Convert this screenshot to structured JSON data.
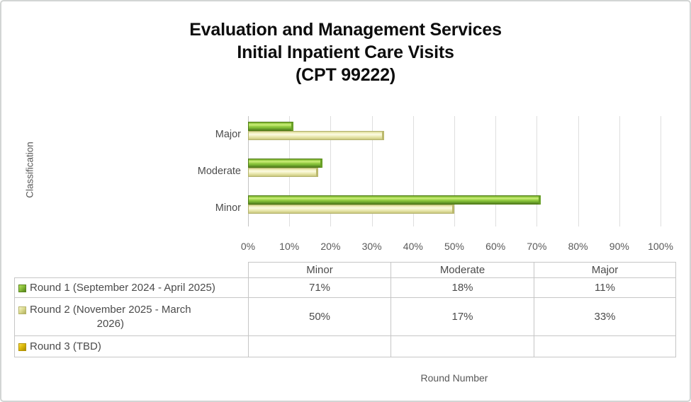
{
  "window": {
    "background": "#ffffff",
    "border_color": "#d2d5d4"
  },
  "title": {
    "lines": [
      "Evaluation and Management Services",
      "Initial Inpatient Care Visits",
      "(CPT 99222)"
    ]
  },
  "chart_data": {
    "type": "bar",
    "orientation": "horizontal",
    "title": "Evaluation and Management Services Initial Inpatient Care Visits (CPT 99222)",
    "y_axis_label": "Classification",
    "x_axis_label": "Round Number",
    "categories": [
      "Major",
      "Moderate",
      "Minor"
    ],
    "x_ticks": [
      "0%",
      "10%",
      "20%",
      "30%",
      "40%",
      "50%",
      "60%",
      "70%",
      "80%",
      "90%",
      "100%"
    ],
    "xlim": [
      0,
      100
    ],
    "gridlines": true,
    "legend_position": "data-table",
    "value_suffix": "%",
    "table_columns": [
      "Minor",
      "Moderate",
      "Major"
    ],
    "series": [
      {
        "name": "Round 1 (September 2024 - April 2025)",
        "name_lines": [
          "Round 1 (September 2024 - April 2025)"
        ],
        "color": "#8CC63E",
        "values": {
          "Minor": 71,
          "Moderate": 18,
          "Major": 11
        }
      },
      {
        "name": "Round 2 (November 2025 - March 2026)",
        "name_lines": [
          "Round 2 (November 2025 - March",
          "2026)"
        ],
        "color": "#EDECAE",
        "values": {
          "Minor": 50,
          "Moderate": 17,
          "Major": 33
        }
      },
      {
        "name": "Round 3 (TBD)",
        "name_lines": [
          "Round 3 (TBD)"
        ],
        "color": "#D9B400",
        "values": {
          "Minor": null,
          "Moderate": null,
          "Major": null
        }
      }
    ]
  }
}
